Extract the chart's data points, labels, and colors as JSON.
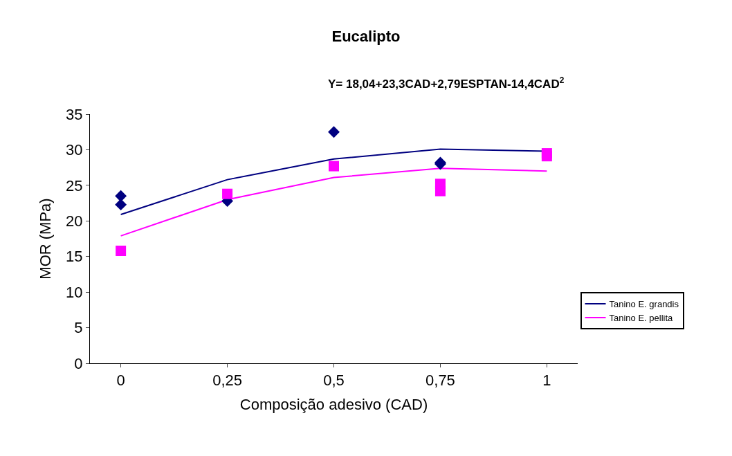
{
  "chart_data": {
    "type": "line",
    "title": "Eucalipto",
    "xlabel": "Composição adesivo (CAD)",
    "ylabel": "MOR (MPa)",
    "annotations": [
      "Y= 18,04+23,3CAD+2,79ESPTAN-14,4CAD$^{2}$"
    ],
    "categories": [
      "0",
      "0,25",
      "0,5",
      "0,75",
      "1"
    ],
    "series": [
      {
        "name": "Tanino E. grandis",
        "color": "#000080",
        "values": [
          20.9,
          25.8,
          28.7,
          30.1,
          29.8
        ],
        "marker": "none"
      },
      {
        "name": "Tanino E. pellita",
        "color": "#ff00ff",
        "values": [
          17.9,
          23.0,
          26.1,
          27.4,
          27.0
        ],
        "marker": "none"
      },
      {
        "type": "scatter",
        "color": "#000080",
        "marker": "diamond",
        "x": [
          "0",
          "0",
          "0,25",
          "0,5",
          "0,75",
          "0,75"
        ],
        "values": [
          23.5,
          22.3,
          22.8,
          32.5,
          28.0,
          28.2
        ]
      },
      {
        "type": "scatter",
        "color": "#ff00ff",
        "marker": "square",
        "x": [
          "0",
          "0,25",
          "0,5",
          "0,75",
          "0,75",
          "1",
          "1"
        ],
        "values": [
          15.8,
          23.8,
          27.7,
          25.2,
          24.2,
          29.5,
          29.1
        ]
      }
    ],
    "ylim": [
      0,
      35
    ],
    "yticks": [
      0,
      5,
      10,
      15,
      20,
      25,
      30,
      35
    ],
    "legend": "right"
  }
}
